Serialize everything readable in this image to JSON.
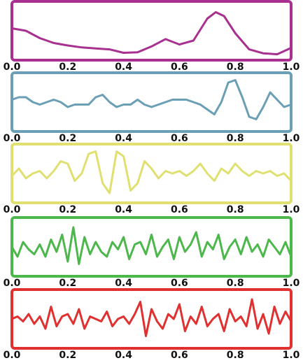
{
  "chart_data": [
    {
      "type": "line",
      "color": "#a8308f",
      "xlim": [
        0,
        1
      ],
      "ylim": [
        0,
        1
      ],
      "xticks": [
        {
          "value": 0,
          "label": "0.0"
        },
        {
          "value": 0.2,
          "label": "0.2"
        },
        {
          "value": 0.4,
          "label": "0.4"
        },
        {
          "value": 0.6,
          "label": "0.6"
        },
        {
          "value": 0.8,
          "label": "0.8"
        },
        {
          "value": 1,
          "label": "1.0"
        }
      ],
      "x": [
        0,
        0.05,
        0.1,
        0.15,
        0.2,
        0.25,
        0.3,
        0.35,
        0.4,
        0.45,
        0.5,
        0.55,
        0.6,
        0.65,
        0.7,
        0.73,
        0.76,
        0.8,
        0.85,
        0.9,
        0.95,
        1
      ],
      "values": [
        0.55,
        0.5,
        0.35,
        0.25,
        0.2,
        0.16,
        0.14,
        0.12,
        0.05,
        0.06,
        0.18,
        0.33,
        0.22,
        0.3,
        0.75,
        0.88,
        0.8,
        0.45,
        0.12,
        0.04,
        0.02,
        0.15
      ]
    },
    {
      "type": "line",
      "color": "#6a9fb5",
      "xlim": [
        0,
        1
      ],
      "ylim": [
        0,
        1
      ],
      "xticks": [
        {
          "value": 0,
          "label": "0.0"
        },
        {
          "value": 0.2,
          "label": "0.2"
        },
        {
          "value": 0.4,
          "label": "0.4"
        },
        {
          "value": 0.6,
          "label": "0.6"
        },
        {
          "value": 0.8,
          "label": "0.8"
        },
        {
          "value": 1,
          "label": "1.0"
        }
      ],
      "x": [
        0,
        0.025,
        0.05,
        0.075,
        0.1,
        0.125,
        0.15,
        0.175,
        0.2,
        0.225,
        0.25,
        0.275,
        0.3,
        0.325,
        0.35,
        0.375,
        0.4,
        0.425,
        0.45,
        0.475,
        0.5,
        0.525,
        0.55,
        0.575,
        0.6,
        0.625,
        0.65,
        0.675,
        0.7,
        0.725,
        0.75,
        0.775,
        0.8,
        0.825,
        0.85,
        0.875,
        0.9,
        0.925,
        0.95,
        0.975,
        1
      ],
      "values": [
        0.55,
        0.6,
        0.6,
        0.5,
        0.45,
        0.5,
        0.55,
        0.5,
        0.4,
        0.45,
        0.45,
        0.45,
        0.6,
        0.65,
        0.5,
        0.4,
        0.45,
        0.45,
        0.55,
        0.45,
        0.4,
        0.45,
        0.5,
        0.55,
        0.55,
        0.55,
        0.5,
        0.45,
        0.35,
        0.25,
        0.5,
        0.9,
        0.95,
        0.6,
        0.2,
        0.15,
        0.4,
        0.7,
        0.55,
        0.4,
        0.45
      ]
    },
    {
      "type": "line",
      "color": "#e0e070",
      "xlim": [
        0,
        1
      ],
      "ylim": [
        0,
        1
      ],
      "xticks": [
        {
          "value": 0,
          "label": "0.0"
        },
        {
          "value": 0.2,
          "label": "0.2"
        },
        {
          "value": 0.4,
          "label": "0.4"
        },
        {
          "value": 0.6,
          "label": "0.6"
        },
        {
          "value": 0.8,
          "label": "0.8"
        },
        {
          "value": 1,
          "label": "1.0"
        }
      ],
      "x": [
        0,
        0.025,
        0.05,
        0.075,
        0.1,
        0.125,
        0.15,
        0.175,
        0.2,
        0.225,
        0.25,
        0.275,
        0.3,
        0.325,
        0.35,
        0.375,
        0.4,
        0.425,
        0.45,
        0.475,
        0.5,
        0.525,
        0.55,
        0.575,
        0.6,
        0.625,
        0.65,
        0.675,
        0.7,
        0.725,
        0.75,
        0.775,
        0.8,
        0.825,
        0.85,
        0.875,
        0.9,
        0.925,
        0.95,
        0.975,
        1
      ],
      "values": [
        0.45,
        0.6,
        0.4,
        0.5,
        0.55,
        0.4,
        0.55,
        0.75,
        0.7,
        0.35,
        0.5,
        0.9,
        0.95,
        0.3,
        0.1,
        0.95,
        0.85,
        0.15,
        0.3,
        0.75,
        0.6,
        0.4,
        0.55,
        0.5,
        0.55,
        0.45,
        0.55,
        0.7,
        0.5,
        0.35,
        0.6,
        0.5,
        0.7,
        0.55,
        0.45,
        0.55,
        0.5,
        0.55,
        0.45,
        0.5,
        0.35
      ]
    },
    {
      "type": "line",
      "color": "#4cb84c",
      "xlim": [
        0,
        1
      ],
      "ylim": [
        0,
        1
      ],
      "xticks": [
        {
          "value": 0,
          "label": "0.0"
        },
        {
          "value": 0.2,
          "label": "0.2"
        },
        {
          "value": 0.4,
          "label": "0.4"
        },
        {
          "value": 0.6,
          "label": "0.6"
        },
        {
          "value": 0.8,
          "label": "0.8"
        },
        {
          "value": 1,
          "label": "1.0"
        }
      ],
      "x": [
        0,
        0.02,
        0.04,
        0.06,
        0.08,
        0.1,
        0.12,
        0.14,
        0.16,
        0.18,
        0.2,
        0.22,
        0.24,
        0.26,
        0.28,
        0.3,
        0.32,
        0.34,
        0.36,
        0.38,
        0.4,
        0.42,
        0.44,
        0.46,
        0.48,
        0.5,
        0.52,
        0.54,
        0.56,
        0.58,
        0.6,
        0.62,
        0.64,
        0.66,
        0.68,
        0.7,
        0.72,
        0.74,
        0.76,
        0.78,
        0.8,
        0.82,
        0.84,
        0.86,
        0.88,
        0.9,
        0.92,
        0.94,
        0.96,
        0.98,
        1
      ],
      "values": [
        0.5,
        0.3,
        0.6,
        0.45,
        0.35,
        0.55,
        0.3,
        0.65,
        0.4,
        0.75,
        0.2,
        0.9,
        0.15,
        0.7,
        0.35,
        0.6,
        0.4,
        0.3,
        0.6,
        0.45,
        0.7,
        0.25,
        0.55,
        0.6,
        0.35,
        0.75,
        0.3,
        0.5,
        0.65,
        0.25,
        0.7,
        0.4,
        0.55,
        0.8,
        0.3,
        0.6,
        0.45,
        0.75,
        0.25,
        0.5,
        0.65,
        0.35,
        0.7,
        0.4,
        0.55,
        0.3,
        0.65,
        0.5,
        0.35,
        0.6,
        0.3
      ]
    },
    {
      "type": "line",
      "color": "#e03030",
      "xlim": [
        0,
        1
      ],
      "ylim": [
        0,
        1
      ],
      "xticks": [
        {
          "value": 0,
          "label": "0.0"
        },
        {
          "value": 0.2,
          "label": "0.2"
        },
        {
          "value": 0.4,
          "label": "0.4"
        },
        {
          "value": 0.6,
          "label": "0.6"
        },
        {
          "value": 0.8,
          "label": "0.8"
        },
        {
          "value": 1,
          "label": "1.0"
        }
      ],
      "x": [
        0,
        0.02,
        0.04,
        0.06,
        0.08,
        0.1,
        0.12,
        0.14,
        0.16,
        0.18,
        0.2,
        0.22,
        0.24,
        0.26,
        0.28,
        0.3,
        0.32,
        0.34,
        0.36,
        0.38,
        0.4,
        0.42,
        0.44,
        0.46,
        0.48,
        0.5,
        0.52,
        0.54,
        0.56,
        0.58,
        0.6,
        0.62,
        0.64,
        0.66,
        0.68,
        0.7,
        0.72,
        0.74,
        0.76,
        0.78,
        0.8,
        0.82,
        0.84,
        0.86,
        0.88,
        0.9,
        0.92,
        0.94,
        0.96,
        0.98,
        1
      ],
      "values": [
        0.5,
        0.55,
        0.45,
        0.6,
        0.4,
        0.55,
        0.3,
        0.75,
        0.35,
        0.55,
        0.6,
        0.4,
        0.7,
        0.3,
        0.55,
        0.5,
        0.45,
        0.65,
        0.35,
        0.5,
        0.55,
        0.4,
        0.6,
        0.85,
        0.15,
        0.7,
        0.45,
        0.3,
        0.6,
        0.5,
        0.8,
        0.25,
        0.55,
        0.4,
        0.75,
        0.35,
        0.5,
        0.6,
        0.25,
        0.7,
        0.45,
        0.55,
        0.35,
        0.9,
        0.3,
        0.6,
        0.2,
        0.75,
        0.4,
        0.65,
        0.45
      ]
    }
  ]
}
